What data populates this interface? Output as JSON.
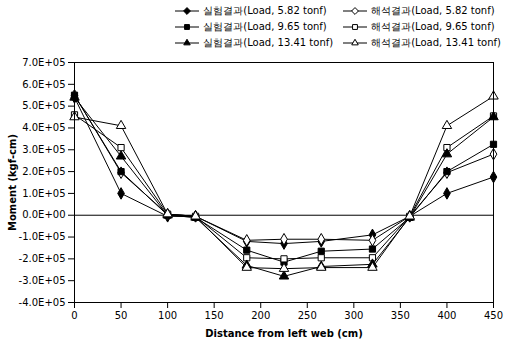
{
  "chart_data": {
    "type": "line",
    "x_label": "Distance from left web (cm)",
    "y_label": "Moment (kgf-cm)",
    "x": [
      0,
      50,
      100,
      130,
      185,
      225,
      265,
      320,
      360,
      400,
      450
    ],
    "series": [
      {
        "name": "실험결과(Load, 5.82 tonf)",
        "color": "black",
        "marker": "diamond",
        "values": [
          540000,
          100000,
          -5000,
          -5000,
          -120000,
          -130000,
          -120000,
          -90000,
          -5000,
          100000,
          175000
        ]
      },
      {
        "name": "해석결과(Load, 5.82 tonf)",
        "color": "black",
        "marker": "diamond-open",
        "values": [
          550000,
          195000,
          5000,
          -5000,
          -115000,
          -110000,
          -110000,
          -115000,
          -5000,
          195000,
          280000
        ]
      },
      {
        "name": "실험결과(Load, 9.65 tonf)",
        "color": "black",
        "marker": "square",
        "values": [
          550000,
          200000,
          0,
          -10000,
          -160000,
          -215000,
          -165000,
          -155000,
          -10000,
          200000,
          325000
        ]
      },
      {
        "name": "해석결과(Load, 9.65 tonf)",
        "color": "black",
        "marker": "square-open",
        "values": [
          460000,
          310000,
          5000,
          -5000,
          -195000,
          -200000,
          -195000,
          -195000,
          -5000,
          310000,
          455000
        ]
      },
      {
        "name": "실험결과(Load, 13.41 tonf)",
        "color": "black",
        "marker": "triangle",
        "values": [
          540000,
          270000,
          0,
          -10000,
          -230000,
          -280000,
          -235000,
          -225000,
          -10000,
          280000,
          450000
        ]
      },
      {
        "name": "해석결과(Load, 13.41 tonf)",
        "color": "black",
        "marker": "triangle-open",
        "values": [
          450000,
          410000,
          5000,
          -5000,
          -240000,
          -245000,
          -240000,
          -240000,
          -5000,
          410000,
          545000
        ]
      }
    ],
    "xlim": [
      0,
      450
    ],
    "ylim": [
      -400000,
      700000
    ],
    "xticks": [
      0,
      50,
      100,
      150,
      200,
      250,
      300,
      350,
      400,
      450
    ],
    "yticks": [
      {
        "value": -400000,
        "label": "-4.0E+05"
      },
      {
        "value": -300000,
        "label": "-3.0E+05"
      },
      {
        "value": -200000,
        "label": "-2.0E+05"
      },
      {
        "value": -100000,
        "label": "-1.0E+05"
      },
      {
        "value": 0,
        "label": "0.0E+00"
      },
      {
        "value": 100000,
        "label": "1.0E+05"
      },
      {
        "value": 200000,
        "label": "2.0E+05"
      },
      {
        "value": 300000,
        "label": "3.0E+05"
      },
      {
        "value": 400000,
        "label": "4.0E+05"
      },
      {
        "value": 500000,
        "label": "5.0E+05"
      },
      {
        "value": 600000,
        "label": "6.0E+05"
      },
      {
        "value": 700000,
        "label": "7.0E+05"
      }
    ],
    "line_style": "solid",
    "grid": false,
    "legend": "upper right"
  }
}
